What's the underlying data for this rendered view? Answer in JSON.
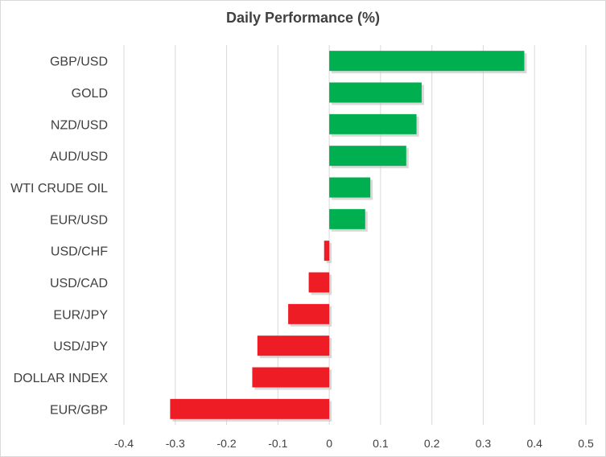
{
  "chart_data": {
    "type": "bar",
    "orientation": "horizontal",
    "title": "Daily Performance (%)",
    "xlabel": "",
    "ylabel": "",
    "xlim": [
      -0.4,
      0.5
    ],
    "xticks": [
      "-0.4",
      "-0.3",
      "-0.2",
      "-0.1",
      "0",
      "0.1",
      "0.2",
      "0.3",
      "0.4",
      "0.5"
    ],
    "grid": true,
    "categories": [
      "GBP/USD",
      "GOLD",
      "NZD/USD",
      "AUD/USD",
      "WTI CRUDE OIL",
      "EUR/USD",
      "USD/CHF",
      "USD/CAD",
      "EUR/JPY",
      "USD/JPY",
      "DOLLAR INDEX",
      "EUR/GBP"
    ],
    "values": [
      0.38,
      0.18,
      0.17,
      0.15,
      0.08,
      0.07,
      -0.01,
      -0.04,
      -0.08,
      -0.14,
      -0.15,
      -0.31
    ],
    "colors": {
      "positive": "#00b050",
      "negative": "#ee1c25",
      "grid": "#d9d9d9",
      "text": "#404040"
    }
  }
}
